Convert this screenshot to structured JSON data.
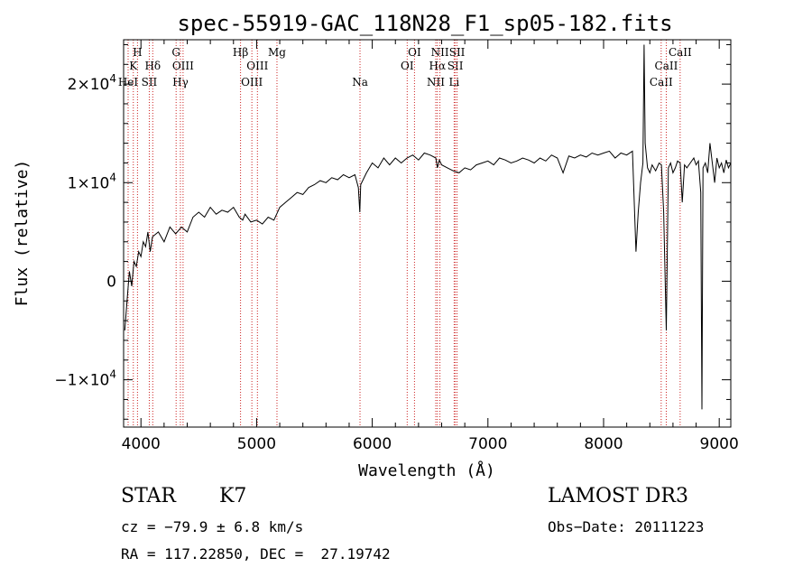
{
  "chart_data": {
    "type": "line",
    "title": "spec-55919-GAC_118N28_F1_sp05-182.fits",
    "xlabel": "Wavelength (Å)",
    "ylabel": "Flux (relative)",
    "xlim": [
      3850,
      9100
    ],
    "ylim": [
      -14800,
      24500
    ],
    "x_ticks": [
      4000,
      5000,
      6000,
      7000,
      8000,
      9000
    ],
    "x_tick_labels": [
      "4000",
      "5000",
      "6000",
      "7000",
      "8000",
      "9000"
    ],
    "y_ticks": [
      -10000,
      0,
      10000,
      20000
    ],
    "y_tick_labels": [
      {
        "mantissa": "−1×10",
        "exp": "4"
      },
      {
        "mantissa": "0",
        "exp": ""
      },
      {
        "mantissa": "1×10",
        "exp": "4"
      },
      {
        "mantissa": "2×10",
        "exp": "4"
      }
    ],
    "series": [
      {
        "name": "spectrum",
        "color": "#000000",
        "x": [
          3860,
          3880,
          3900,
          3920,
          3940,
          3960,
          3980,
          4000,
          4020,
          4040,
          4060,
          4080,
          4100,
          4150,
          4200,
          4250,
          4300,
          4350,
          4400,
          4450,
          4500,
          4550,
          4600,
          4650,
          4700,
          4750,
          4800,
          4850,
          4880,
          4900,
          4950,
          5000,
          5050,
          5100,
          5150,
          5200,
          5250,
          5300,
          5350,
          5400,
          5450,
          5500,
          5550,
          5600,
          5650,
          5700,
          5750,
          5800,
          5850,
          5880,
          5892,
          5900,
          5950,
          6000,
          6050,
          6100,
          6150,
          6200,
          6250,
          6300,
          6350,
          6400,
          6450,
          6500,
          6550,
          6563,
          6580,
          6600,
          6650,
          6700,
          6750,
          6800,
          6850,
          6900,
          6950,
          7000,
          7050,
          7100,
          7150,
          7200,
          7250,
          7300,
          7350,
          7400,
          7450,
          7500,
          7550,
          7600,
          7650,
          7700,
          7750,
          7800,
          7850,
          7900,
          7950,
          8000,
          8050,
          8100,
          8150,
          8200,
          8250,
          8280,
          8300,
          8320,
          8340,
          8350,
          8360,
          8380,
          8400,
          8420,
          8450,
          8480,
          8500,
          8520,
          8542,
          8560,
          8580,
          8600,
          8620,
          8640,
          8662,
          8680,
          8700,
          8720,
          8750,
          8780,
          8800,
          8820,
          8840,
          8850,
          8860,
          8880,
          8900,
          8920,
          8940,
          8960,
          8980,
          9000,
          9020,
          9040,
          9060,
          9080,
          9100
        ],
        "y": [
          -5000,
          -2000,
          1000,
          -500,
          2000,
          1500,
          3000,
          2500,
          4000,
          3500,
          5000,
          3000,
          4500,
          5000,
          4000,
          5500,
          4800,
          5500,
          5000,
          6500,
          7000,
          6500,
          7500,
          6800,
          7200,
          7000,
          7500,
          6500,
          6200,
          6800,
          6000,
          6200,
          5800,
          6500,
          6200,
          7500,
          8000,
          8500,
          9000,
          8800,
          9500,
          9800,
          10200,
          10000,
          10500,
          10300,
          10800,
          10500,
          10800,
          9500,
          7000,
          9800,
          11000,
          12000,
          11500,
          12500,
          11800,
          12500,
          12000,
          12500,
          12800,
          12300,
          13000,
          12800,
          12500,
          11500,
          12300,
          11800,
          11500,
          11200,
          11000,
          11500,
          11300,
          11800,
          12000,
          12200,
          11800,
          12500,
          12300,
          12000,
          12200,
          12500,
          12300,
          12000,
          12500,
          12200,
          12800,
          12500,
          11000,
          12700,
          12500,
          12800,
          12600,
          13000,
          12800,
          13000,
          13200,
          12500,
          13000,
          12800,
          13200,
          3000,
          7000,
          10000,
          12000,
          24000,
          14000,
          11500,
          11000,
          11800,
          11200,
          12000,
          11800,
          7000,
          -5000,
          11500,
          12000,
          11000,
          11500,
          12200,
          12000,
          8000,
          11800,
          11500,
          12000,
          12500,
          11800,
          12200,
          9000,
          -13000,
          11500,
          12000,
          11000,
          14000,
          12000,
          10000,
          12500,
          11500,
          12000,
          11000,
          12300,
          11500,
          12000
        ]
      }
    ],
    "line_markers": [
      {
        "wavelength": 3889,
        "label": "HeI",
        "row": 3
      },
      {
        "wavelength": 3934,
        "label": "K",
        "row": 2
      },
      {
        "wavelength": 3970,
        "label": "H",
        "row": 1
      },
      {
        "wavelength": 4072,
        "label": "SII",
        "row": 3
      },
      {
        "wavelength": 4102,
        "label": "Hδ",
        "row": 2
      },
      {
        "wavelength": 4304,
        "label": "G",
        "row": 1
      },
      {
        "wavelength": 4341,
        "label": "Hγ",
        "row": 3
      },
      {
        "wavelength": 4364,
        "label": "OIII",
        "row": 2
      },
      {
        "wavelength": 4861,
        "label": "Hβ",
        "row": 1
      },
      {
        "wavelength": 4959,
        "label": "OIII",
        "row": 3
      },
      {
        "wavelength": 5007,
        "label": "OIII",
        "row": 2
      },
      {
        "wavelength": 5176,
        "label": "Mg",
        "row": 1
      },
      {
        "wavelength": 5894,
        "label": "Na",
        "row": 3
      },
      {
        "wavelength": 6302,
        "label": "OI",
        "row": 2
      },
      {
        "wavelength": 6365,
        "label": "OI",
        "row": 1
      },
      {
        "wavelength": 6549,
        "label": "NII",
        "row": 3
      },
      {
        "wavelength": 6563,
        "label": "Hα",
        "row": 2
      },
      {
        "wavelength": 6585,
        "label": "NII",
        "row": 1
      },
      {
        "wavelength": 6708,
        "label": "Li",
        "row": 3
      },
      {
        "wavelength": 6718,
        "label": "SII",
        "row": 2
      },
      {
        "wavelength": 6733,
        "label": "SII",
        "row": 1
      },
      {
        "wavelength": 8498,
        "label": "CaII",
        "row": 3
      },
      {
        "wavelength": 8542,
        "label": "CaII",
        "row": 2
      },
      {
        "wavelength": 8662,
        "label": "CaII",
        "row": 1
      }
    ],
    "marker_color": "#cc2222"
  },
  "info": {
    "class_label": "STAR",
    "subclass": "K7",
    "survey": "LAMOST DR3",
    "cz": "cz = −79.9 ± 6.8 km/s",
    "obs_date": "Obs−Date: 20111223",
    "coords": "RA = 117.22850, DEC =  27.19742"
  }
}
